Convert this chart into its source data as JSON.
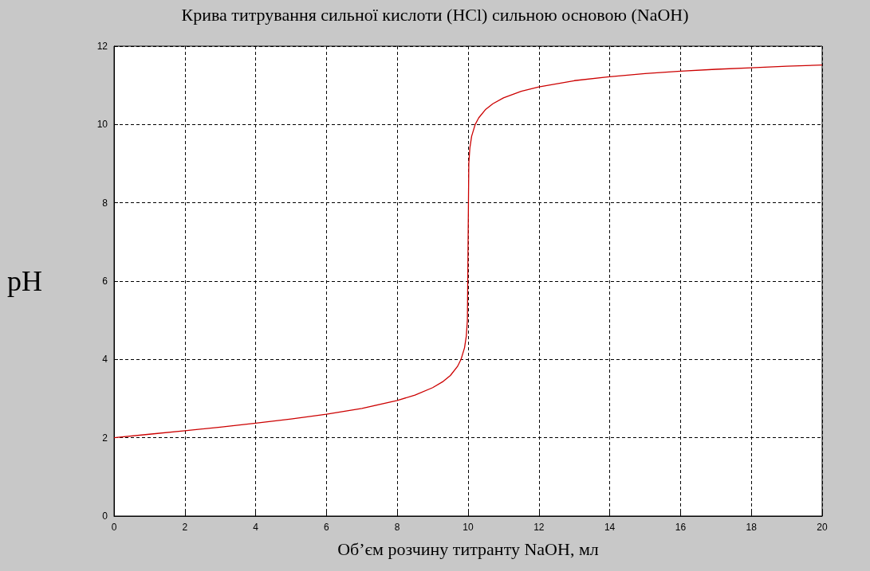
{
  "chart_data": {
    "type": "line",
    "title": "Крива титрування сильної кислоти (HCl) сильною основою (NaOH)",
    "xlabel": "Об’єм розчину титранту NaOH, мл",
    "ylabel": "pH",
    "series": [
      {
        "color": "#cc0000",
        "x": [
          0,
          1,
          2,
          3,
          4,
          5,
          6,
          7,
          8,
          8.5,
          9,
          9.3,
          9.5,
          9.7,
          9.8,
          9.9,
          9.95,
          9.98,
          10,
          10.02,
          10.05,
          10.1,
          10.2,
          10.3,
          10.5,
          10.7,
          11,
          11.5,
          12,
          13,
          14,
          15,
          16,
          17,
          18,
          19,
          20
        ],
        "values": [
          2,
          2.09,
          2.18,
          2.27,
          2.37,
          2.48,
          2.6,
          2.75,
          2.95,
          3.09,
          3.28,
          3.44,
          3.59,
          3.82,
          4.0,
          4.3,
          4.6,
          5.0,
          7.0,
          9.0,
          9.4,
          9.7,
          10.0,
          10.17,
          10.39,
          10.53,
          10.68,
          10.85,
          10.96,
          11.12,
          11.22,
          11.3,
          11.36,
          11.41,
          11.45,
          11.49,
          11.52
        ]
      }
    ],
    "xlim": [
      0,
      20
    ],
    "xticks": [
      0,
      2,
      4,
      6,
      8,
      10,
      12,
      14,
      16,
      18,
      20
    ],
    "ylim": [
      0,
      12
    ],
    "yticks": [
      0,
      2,
      4,
      6,
      8,
      10,
      12
    ],
    "grid": true,
    "marker": "none",
    "line_style": "solid"
  }
}
